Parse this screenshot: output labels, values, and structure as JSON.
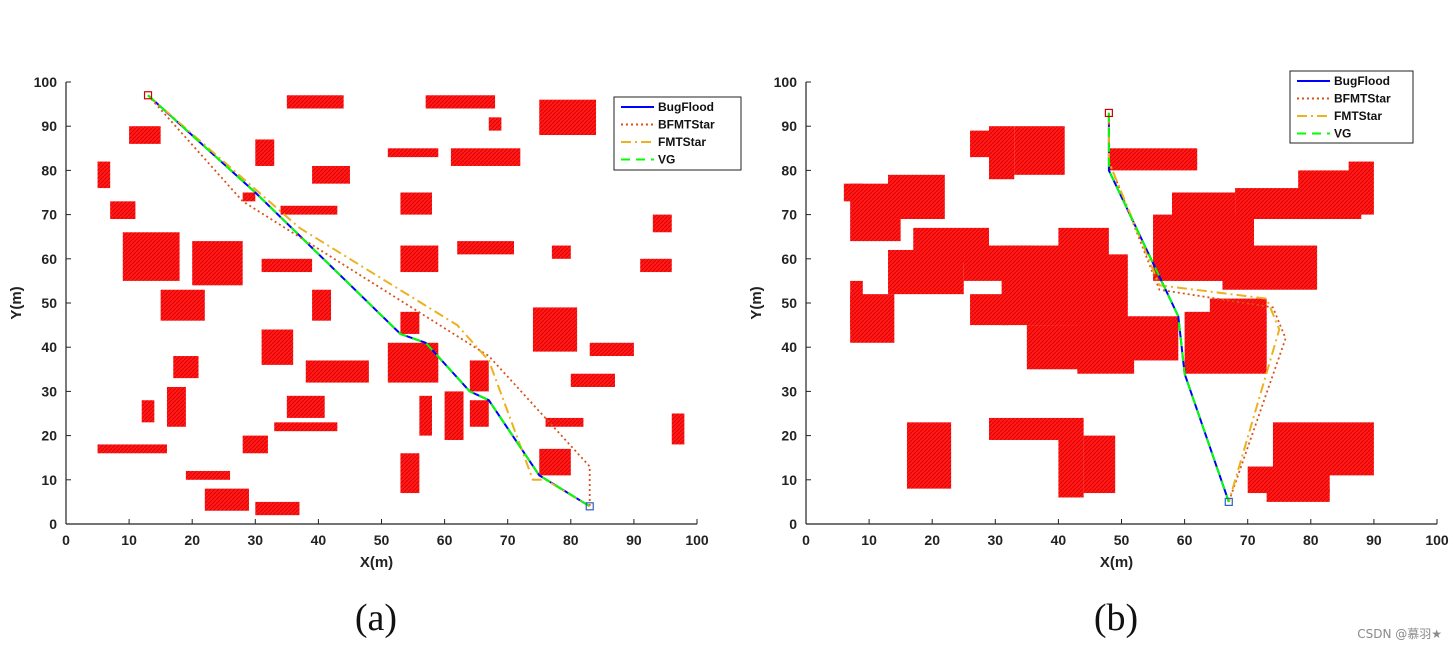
{
  "chart_data": [
    {
      "type": "line",
      "panel_label": "(a)",
      "xlabel": "X(m)",
      "ylabel": "Y(m)",
      "xlim": [
        0,
        100
      ],
      "ylim": [
        0,
        100
      ],
      "xticks": [
        0,
        10,
        20,
        30,
        40,
        50,
        60,
        70,
        80,
        90,
        100
      ],
      "yticks": [
        0,
        10,
        20,
        30,
        40,
        50,
        60,
        70,
        80,
        90,
        100
      ],
      "legend_position": "top-right",
      "start": [
        13,
        97
      ],
      "goal": [
        83,
        4
      ],
      "obstacle_color": "#ff0000",
      "obstacles": [
        [
          5,
          76,
          2,
          6
        ],
        [
          7,
          69,
          4,
          4
        ],
        [
          10,
          86,
          5,
          4
        ],
        [
          9,
          55,
          9,
          11
        ],
        [
          15,
          46,
          7,
          7
        ],
        [
          20,
          54,
          8,
          10
        ],
        [
          17,
          33,
          4,
          5
        ],
        [
          16,
          22,
          3,
          9
        ],
        [
          12,
          23,
          2,
          5
        ],
        [
          5,
          16,
          11,
          2
        ],
        [
          19,
          10,
          7,
          2
        ],
        [
          22,
          3,
          7,
          5
        ],
        [
          28,
          73,
          2,
          2
        ],
        [
          30,
          81,
          3,
          6
        ],
        [
          35,
          94,
          9,
          3
        ],
        [
          34,
          70,
          9,
          2
        ],
        [
          39,
          77,
          6,
          4
        ],
        [
          31,
          57,
          8,
          3
        ],
        [
          39,
          46,
          3,
          7
        ],
        [
          31,
          36,
          5,
          8
        ],
        [
          38,
          32,
          10,
          5
        ],
        [
          35,
          24,
          6,
          5
        ],
        [
          33,
          21,
          10,
          2
        ],
        [
          28,
          16,
          4,
          4
        ],
        [
          30,
          2,
          7,
          3
        ],
        [
          51,
          32,
          8,
          9
        ],
        [
          53,
          43,
          3,
          5
        ],
        [
          53,
          70,
          5,
          5
        ],
        [
          53,
          57,
          6,
          6
        ],
        [
          51,
          83,
          8,
          2
        ],
        [
          57,
          94,
          11,
          3
        ],
        [
          61,
          81,
          11,
          4
        ],
        [
          67,
          89,
          2,
          3
        ],
        [
          62,
          61,
          9,
          3
        ],
        [
          56,
          20,
          2,
          9
        ],
        [
          60,
          19,
          3,
          11
        ],
        [
          64,
          22,
          3,
          6
        ],
        [
          64,
          30,
          3,
          7
        ],
        [
          53,
          7,
          3,
          9
        ],
        [
          75,
          88,
          9,
          8
        ],
        [
          77,
          60,
          3,
          3
        ],
        [
          74,
          39,
          7,
          10
        ],
        [
          83,
          38,
          7,
          3
        ],
        [
          80,
          31,
          7,
          3
        ],
        [
          76,
          22,
          6,
          2
        ],
        [
          75,
          11,
          5,
          6
        ],
        [
          91,
          57,
          5,
          3
        ],
        [
          93,
          66,
          3,
          4
        ],
        [
          96,
          18,
          2,
          7
        ]
      ],
      "series": [
        {
          "name": "BugFlood",
          "color": "#0000ff",
          "dash": "solid",
          "x": [
            13,
            30,
            53,
            57,
            64,
            67,
            75,
            83
          ],
          "y": [
            97,
            75,
            43,
            41,
            30,
            28,
            11,
            4
          ]
        },
        {
          "name": "BFMTStar",
          "color": "#d95319",
          "dash": "dotted",
          "x": [
            13,
            28,
            67,
            83,
            83
          ],
          "y": [
            97,
            73,
            38,
            13,
            4
          ]
        },
        {
          "name": "FMTStar",
          "color": "#edb120",
          "dash": "dashdot",
          "x": [
            13,
            37,
            62,
            67,
            74,
            76,
            83
          ],
          "y": [
            97,
            67,
            45,
            37,
            10,
            10,
            4
          ]
        },
        {
          "name": "VG",
          "color": "#00ff00",
          "dash": "dashed",
          "x": [
            13,
            30,
            53,
            57,
            64,
            67,
            75,
            83
          ],
          "y": [
            97,
            75,
            43,
            41,
            30,
            28,
            11,
            4
          ]
        }
      ]
    },
    {
      "type": "line",
      "panel_label": "(b)",
      "xlabel": "X(m)",
      "ylabel": "Y(m)",
      "xlim": [
        0,
        100
      ],
      "ylim": [
        0,
        100
      ],
      "xticks": [
        0,
        10,
        20,
        30,
        40,
        50,
        60,
        70,
        80,
        90,
        100
      ],
      "yticks": [
        0,
        10,
        20,
        30,
        40,
        50,
        60,
        70,
        80,
        90,
        100
      ],
      "legend_position": "top-right",
      "start": [
        48,
        93
      ],
      "goal": [
        67,
        5
      ],
      "obstacle_color": "#ff0000",
      "obstacles": [
        [
          26,
          83,
          4,
          6
        ],
        [
          29,
          78,
          4,
          12
        ],
        [
          33,
          79,
          8,
          11
        ],
        [
          48,
          80,
          14,
          5
        ],
        [
          6,
          73,
          3,
          4
        ],
        [
          7,
          64,
          8,
          13
        ],
        [
          13,
          69,
          9,
          10
        ],
        [
          17,
          59,
          12,
          8
        ],
        [
          13,
          52,
          12,
          10
        ],
        [
          25,
          55,
          11,
          8
        ],
        [
          31,
          45,
          12,
          18
        ],
        [
          26,
          45,
          6,
          7
        ],
        [
          38,
          45,
          13,
          16
        ],
        [
          40,
          45,
          8,
          22
        ],
        [
          35,
          35,
          13,
          10
        ],
        [
          43,
          34,
          9,
          11
        ],
        [
          47,
          37,
          12,
          10
        ],
        [
          55,
          55,
          16,
          15
        ],
        [
          58,
          55,
          10,
          20
        ],
        [
          68,
          69,
          14,
          7
        ],
        [
          78,
          69,
          10,
          11
        ],
        [
          86,
          70,
          4,
          12
        ],
        [
          66,
          53,
          15,
          10
        ],
        [
          60,
          34,
          13,
          14
        ],
        [
          64,
          36,
          9,
          15
        ],
        [
          7,
          41,
          7,
          11
        ],
        [
          7,
          44,
          2,
          11
        ],
        [
          16,
          8,
          7,
          15
        ],
        [
          29,
          19,
          15,
          5
        ],
        [
          40,
          6,
          4,
          14
        ],
        [
          44,
          7,
          5,
          13
        ],
        [
          74,
          11,
          16,
          12
        ],
        [
          70,
          7,
          13,
          6
        ],
        [
          73,
          5,
          10,
          3
        ]
      ],
      "series": [
        {
          "name": "BugFlood",
          "color": "#0000ff",
          "dash": "solid",
          "x": [
            48,
            48,
            48,
            59,
            60,
            67
          ],
          "y": [
            93,
            85,
            80,
            47,
            34,
            5
          ]
        },
        {
          "name": "BFMTStar",
          "color": "#d95319",
          "dash": "dotted",
          "x": [
            48,
            48,
            56,
            74,
            76,
            67
          ],
          "y": [
            93,
            82,
            53,
            49,
            42,
            5
          ]
        },
        {
          "name": "FMTStar",
          "color": "#edb120",
          "dash": "dashdot",
          "x": [
            48,
            48,
            48,
            56,
            73,
            75,
            67
          ],
          "y": [
            93,
            85,
            82,
            54,
            51,
            44,
            5
          ]
        },
        {
          "name": "VG",
          "color": "#00ff00",
          "dash": "dashed",
          "x": [
            48,
            48,
            48,
            59,
            60,
            67
          ],
          "y": [
            93,
            85,
            80,
            47,
            34,
            5
          ]
        }
      ]
    }
  ],
  "watermark": "CSDN @慕羽★"
}
